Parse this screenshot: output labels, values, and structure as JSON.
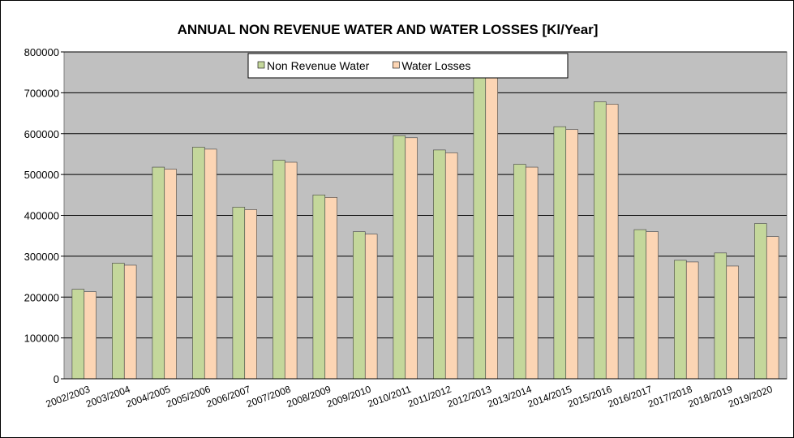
{
  "chart_data": {
    "type": "bar",
    "title": "ANNUAL NON REVENUE WATER AND WATER LOSSES [Kl/Year]",
    "categories": [
      "2002/2003",
      "2003/2004",
      "2004/2005",
      "2005/2006",
      "2006/2007",
      "2007/2008",
      "2008/2009",
      "2009/2010",
      "2010/2011",
      "2011/2012",
      "2012/2013",
      "2013/2014",
      "2014/2015",
      "2015/2016",
      "2016/2017",
      "2017/2018",
      "2018/2019",
      "2019/2020"
    ],
    "series": [
      {
        "name": "Non Revenue Water",
        "color": "#c4d79b",
        "values": [
          219000,
          283000,
          518000,
          567000,
          420000,
          535000,
          450000,
          360000,
          595000,
          560000,
          742000,
          525000,
          617000,
          678000,
          365000,
          290000,
          308000,
          380000
        ]
      },
      {
        "name": "Water Losses",
        "color": "#fcd5b4",
        "values": [
          213000,
          278000,
          513000,
          562000,
          414000,
          530000,
          444000,
          354000,
          590000,
          553000,
          736000,
          518000,
          610000,
          672000,
          360000,
          286000,
          276000,
          348000
        ]
      }
    ],
    "ylim": [
      0,
      800000
    ],
    "yticks": [
      0,
      100000,
      200000,
      300000,
      400000,
      500000,
      600000,
      700000,
      800000
    ],
    "grid": true,
    "legend": "top"
  }
}
